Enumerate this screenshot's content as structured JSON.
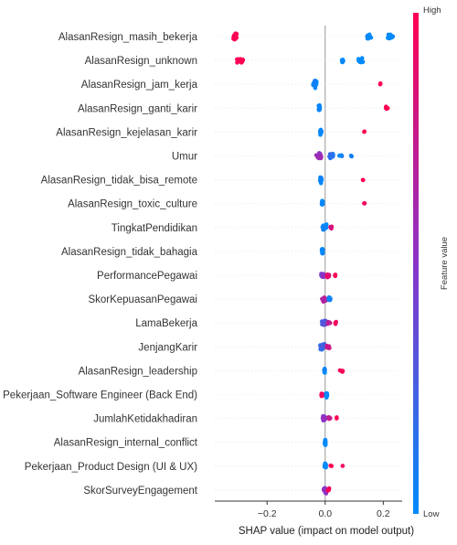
{
  "chart_data": {
    "type": "scatter",
    "subtype": "shap-beeswarm",
    "xlabel": "SHAP value (impact on model output)",
    "xticks": [
      -0.2,
      0.0,
      0.2
    ],
    "xlim": [
      -0.38,
      0.265
    ],
    "grid": false,
    "zero_line": true,
    "colorbar": {
      "title": "Feature value",
      "high_label": "High",
      "low_label": "Low",
      "low_color": "#008bfb",
      "mid_color": "#8a34c8",
      "high_color": "#ff0052"
    },
    "features": [
      {
        "name": "AlasanResign_masih_bekerja",
        "groups": [
          {
            "x": -0.31,
            "spread": 0.008,
            "n": 26,
            "color": 1.0
          },
          {
            "x": 0.15,
            "spread": 0.012,
            "n": 14,
            "color": 0.0
          },
          {
            "x": 0.225,
            "spread": 0.012,
            "n": 16,
            "color": 0.0
          }
        ]
      },
      {
        "name": "AlasanResign_unknown",
        "groups": [
          {
            "x": -0.29,
            "spread": 0.02,
            "n": 18,
            "color": 1.0
          },
          {
            "x": 0.06,
            "spread": 0.004,
            "n": 12,
            "color": 0.0
          },
          {
            "x": 0.12,
            "spread": 0.015,
            "n": 16,
            "color": 0.0
          }
        ]
      },
      {
        "name": "AlasanResign_jam_kerja",
        "groups": [
          {
            "x": -0.035,
            "spread": 0.007,
            "n": 36,
            "color": 0.0
          },
          {
            "x": 0.19,
            "spread": 0.002,
            "n": 2,
            "color": 1.0
          }
        ]
      },
      {
        "name": "AlasanResign_ganti_karir",
        "groups": [
          {
            "x": -0.02,
            "spread": 0.004,
            "n": 24,
            "color": 0.0
          },
          {
            "x": 0.215,
            "spread": 0.01,
            "n": 4,
            "color": 1.0
          }
        ]
      },
      {
        "name": "AlasanResign_kejelasan_karir",
        "groups": [
          {
            "x": -0.015,
            "spread": 0.004,
            "n": 24,
            "color": 0.0
          },
          {
            "x": 0.135,
            "spread": 0.002,
            "n": 2,
            "color": 1.0
          }
        ]
      },
      {
        "name": "Umur",
        "groups": [
          {
            "x": -0.02,
            "spread": 0.012,
            "n": 26,
            "color": 0.6
          },
          {
            "x": 0.02,
            "spread": 0.012,
            "n": 14,
            "color": 0.15
          },
          {
            "x": 0.055,
            "spread": 0.01,
            "n": 5,
            "color": 0.05
          },
          {
            "x": 0.09,
            "spread": 0.006,
            "n": 2,
            "color": 0.0
          }
        ]
      },
      {
        "name": "AlasanResign_tidak_bisa_remote",
        "groups": [
          {
            "x": -0.015,
            "spread": 0.004,
            "n": 24,
            "color": 0.0
          },
          {
            "x": 0.13,
            "spread": 0.002,
            "n": 2,
            "color": 1.0
          }
        ]
      },
      {
        "name": "AlasanResign_toxic_culture",
        "groups": [
          {
            "x": -0.01,
            "spread": 0.003,
            "n": 22,
            "color": 0.0
          },
          {
            "x": 0.135,
            "spread": 0.002,
            "n": 2,
            "color": 1.0
          }
        ]
      },
      {
        "name": "TingkatPendidikan",
        "groups": [
          {
            "x": -0.005,
            "spread": 0.014,
            "n": 22,
            "color": 0.0
          },
          {
            "x": 0.02,
            "spread": 0.008,
            "n": 8,
            "color": 0.85
          }
        ]
      },
      {
        "name": "AlasanResign_tidak_bahagia",
        "groups": [
          {
            "x": -0.01,
            "spread": 0.003,
            "n": 20,
            "color": 0.0
          }
        ]
      },
      {
        "name": "PerformancePegawai",
        "groups": [
          {
            "x": -0.01,
            "spread": 0.008,
            "n": 18,
            "color": 0.5
          },
          {
            "x": 0.01,
            "spread": 0.01,
            "n": 12,
            "color": 0.9
          },
          {
            "x": 0.035,
            "spread": 0.006,
            "n": 4,
            "color": 1.0
          }
        ]
      },
      {
        "name": "SkorKepuasanPegawai",
        "groups": [
          {
            "x": -0.005,
            "spread": 0.012,
            "n": 22,
            "color": 0.7
          },
          {
            "x": 0.015,
            "spread": 0.008,
            "n": 12,
            "color": 0.1
          }
        ]
      },
      {
        "name": "LamaBekerja",
        "groups": [
          {
            "x": -0.005,
            "spread": 0.012,
            "n": 22,
            "color": 0.3
          },
          {
            "x": 0.012,
            "spread": 0.008,
            "n": 10,
            "color": 0.75
          },
          {
            "x": 0.035,
            "spread": 0.005,
            "n": 3,
            "color": 1.0
          }
        ]
      },
      {
        "name": "JenjangKarir",
        "groups": [
          {
            "x": -0.01,
            "spread": 0.012,
            "n": 24,
            "color": 0.2
          },
          {
            "x": 0.01,
            "spread": 0.008,
            "n": 10,
            "color": 0.8
          }
        ]
      },
      {
        "name": "AlasanResign_leadership",
        "groups": [
          {
            "x": -0.002,
            "spread": 0.002,
            "n": 16,
            "color": 0.0
          },
          {
            "x": 0.055,
            "spread": 0.008,
            "n": 4,
            "color": 1.0
          }
        ]
      },
      {
        "name": "Pekerjaan_Software Engineer (Back End)",
        "groups": [
          {
            "x": -0.01,
            "spread": 0.006,
            "n": 8,
            "color": 1.0
          },
          {
            "x": 0.005,
            "spread": 0.004,
            "n": 18,
            "color": 0.0
          }
        ]
      },
      {
        "name": "JumlahKetidakhadiran",
        "groups": [
          {
            "x": -0.003,
            "spread": 0.01,
            "n": 22,
            "color": 0.5
          },
          {
            "x": 0.015,
            "spread": 0.006,
            "n": 8,
            "color": 0.8
          },
          {
            "x": 0.04,
            "spread": 0.004,
            "n": 2,
            "color": 1.0
          }
        ]
      },
      {
        "name": "AlasanResign_internal_conflict",
        "groups": [
          {
            "x": 0.0,
            "spread": 0.002,
            "n": 18,
            "color": 0.0
          }
        ]
      },
      {
        "name": "Pekerjaan_Product Design (UI & UX)",
        "groups": [
          {
            "x": 0.0,
            "spread": 0.004,
            "n": 18,
            "color": 0.0
          },
          {
            "x": 0.02,
            "spread": 0.004,
            "n": 3,
            "color": 1.0
          },
          {
            "x": 0.06,
            "spread": 0.002,
            "n": 1,
            "color": 1.0
          }
        ]
      },
      {
        "name": "SkorSurveyEngagement",
        "groups": [
          {
            "x": 0.0,
            "spread": 0.008,
            "n": 22,
            "color": 0.5
          },
          {
            "x": 0.01,
            "spread": 0.006,
            "n": 6,
            "color": 0.95
          }
        ]
      }
    ]
  }
}
